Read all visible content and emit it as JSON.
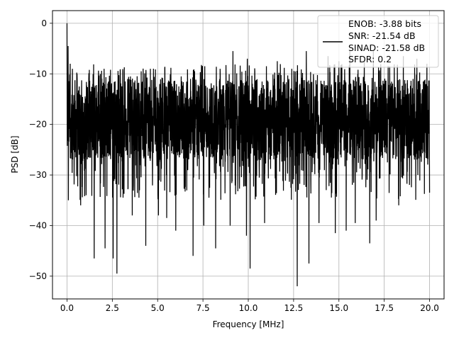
{
  "chart_data": {
    "type": "line",
    "title": "",
    "xlabel": "Frequency [MHz]",
    "ylabel": "PSD [dB]",
    "xlim": [
      -0.8,
      20.8
    ],
    "ylim": [
      -54.5,
      2.5
    ],
    "xticks": [
      0.0,
      2.5,
      5.0,
      7.5,
      10.0,
      12.5,
      15.0,
      17.5,
      20.0
    ],
    "xtick_labels": [
      "0.0",
      "2.5",
      "5.0",
      "7.5",
      "10.0",
      "12.5",
      "15.0",
      "17.5",
      "20.0"
    ],
    "yticks": [
      0,
      -10,
      -20,
      -30,
      -40,
      -50
    ],
    "ytick_labels": [
      "0",
      "−10",
      "−20",
      "−30",
      "−40",
      "−50"
    ],
    "grid": true,
    "legend_position": "top-right",
    "legend": {
      "lines": [
        "ENOB: -3.88 bits",
        "SNR: -21.54 dB",
        "SINAD: -21.58 dB",
        "SFDR: 0.2"
      ]
    },
    "series": [
      {
        "color": "#000000",
        "x_range": [
          0,
          20
        ],
        "peak": [
          0,
          0
        ],
        "typical_floor_db": [
          -27,
          -11
        ],
        "dips": [
          [
            0.08,
            -35
          ],
          [
            0.3,
            -37
          ],
          [
            0.55,
            -33
          ],
          [
            0.75,
            -36
          ],
          [
            1.05,
            -34
          ],
          [
            1.5,
            -46.5
          ],
          [
            2.1,
            -44.5
          ],
          [
            2.55,
            -46.5
          ],
          [
            2.75,
            -49.5
          ],
          [
            3.6,
            -38
          ],
          [
            4.35,
            -44
          ],
          [
            5.05,
            -38
          ],
          [
            5.5,
            -38.5
          ],
          [
            6.0,
            -41
          ],
          [
            6.95,
            -46
          ],
          [
            7.55,
            -40
          ],
          [
            8.2,
            -44.5
          ],
          [
            9.0,
            -40
          ],
          [
            9.9,
            -42
          ],
          [
            10.1,
            -48.5
          ],
          [
            10.9,
            -39.5
          ],
          [
            11.6,
            -38
          ],
          [
            12.7,
            -52
          ],
          [
            13.35,
            -47.5
          ],
          [
            13.9,
            -39.5
          ],
          [
            14.8,
            -41.5
          ],
          [
            15.4,
            -41
          ],
          [
            15.9,
            -39.5
          ],
          [
            16.7,
            -43.5
          ],
          [
            17.05,
            -39
          ],
          [
            18.3,
            -36
          ],
          [
            20.0,
            -33.5
          ]
        ],
        "spikes": [
          [
            0.06,
            -4.5
          ],
          [
            0.18,
            -8
          ],
          [
            0.3,
            -9
          ],
          [
            0.55,
            -10
          ],
          [
            1.2,
            -11
          ],
          [
            2.05,
            -9
          ],
          [
            3.5,
            -10.5
          ],
          [
            4.6,
            -9
          ],
          [
            6.3,
            -10.5
          ],
          [
            7.6,
            -8.5
          ],
          [
            8.45,
            -9
          ],
          [
            9.15,
            -5.5
          ],
          [
            9.95,
            -7
          ],
          [
            11.0,
            -8.5
          ],
          [
            11.6,
            -7.5
          ],
          [
            12.4,
            -9
          ],
          [
            13.2,
            -5.5
          ],
          [
            14.4,
            -6.5
          ],
          [
            15.0,
            -7.5
          ],
          [
            15.6,
            -5.5
          ],
          [
            16.4,
            -7.5
          ],
          [
            16.9,
            -5.5
          ],
          [
            17.8,
            -8.5
          ],
          [
            18.55,
            -6.5
          ],
          [
            19.3,
            -7
          ],
          [
            19.85,
            -8
          ]
        ]
      }
    ]
  }
}
